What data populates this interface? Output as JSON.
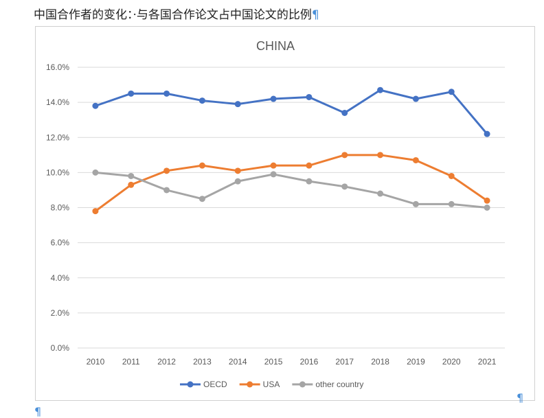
{
  "heading": "中国合作者的变化：·与各国合作论文占中国论文的比例",
  "pilcrow": "¶",
  "chart_data": {
    "type": "line",
    "title": "CHINA",
    "categories": [
      "2010",
      "2011",
      "2012",
      "2013",
      "2014",
      "2015",
      "2016",
      "2017",
      "2018",
      "2019",
      "2020",
      "2021"
    ],
    "ylim": [
      0,
      16
    ],
    "yticks": [
      "0.0%",
      "2.0%",
      "4.0%",
      "6.0%",
      "8.0%",
      "10.0%",
      "12.0%",
      "14.0%",
      "16.0%"
    ],
    "grid": true,
    "legend": "bottom",
    "series": [
      {
        "name": "OECD",
        "color": "#4472c4",
        "values": [
          13.8,
          14.5,
          14.5,
          14.1,
          13.9,
          14.2,
          14.3,
          13.4,
          14.7,
          14.2,
          14.6,
          12.2
        ]
      },
      {
        "name": "USA",
        "color": "#ed7d31",
        "values": [
          7.8,
          9.3,
          10.1,
          10.4,
          10.1,
          10.4,
          10.4,
          11.0,
          11.0,
          10.7,
          9.8,
          8.4
        ]
      },
      {
        "name": "other country",
        "color": "#a5a5a5",
        "values": [
          10.0,
          9.8,
          9.0,
          8.5,
          9.5,
          9.9,
          9.5,
          9.2,
          8.8,
          8.2,
          8.2,
          8.0
        ]
      }
    ]
  }
}
